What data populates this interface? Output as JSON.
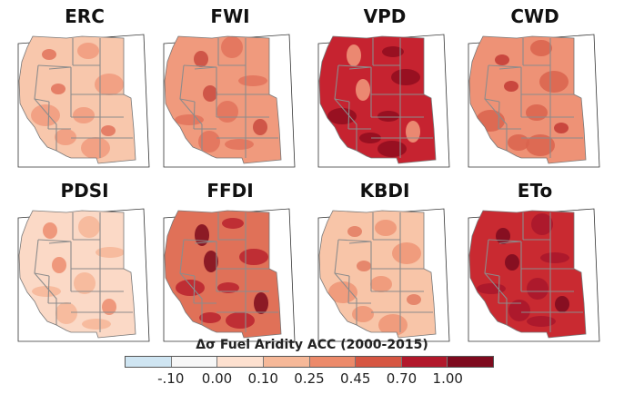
{
  "panels": [
    {
      "label": "ERC",
      "fill": "#f8c7ac",
      "patch": "#f19a7c",
      "dark": "#e2725b"
    },
    {
      "label": "FWI",
      "fill": "#f09a7d",
      "patch": "#e2725b",
      "dark": "#c94a3e"
    },
    {
      "label": "VPD",
      "fill": "#c62330",
      "patch": "#8f0d1f",
      "dark": "#f19a7c"
    },
    {
      "label": "CWD",
      "fill": "#ee9276",
      "patch": "#d9634e",
      "dark": "#c23a35"
    },
    {
      "label": "PDSI",
      "fill": "#fbd9c6",
      "patch": "#f6b596",
      "dark": "#ec8c6e"
    },
    {
      "label": "FFDI",
      "fill": "#e07158",
      "patch": "#b8222e",
      "dark": "#7d0a1c"
    },
    {
      "label": "KBDI",
      "fill": "#f8c5a8",
      "patch": "#ef9476",
      "dark": "#e37b62"
    },
    {
      "label": "ETo",
      "fill": "#c92a31",
      "patch": "#a8162b",
      "dark": "#7b0a1e"
    }
  ],
  "colorbar": {
    "title": "Δσ Fuel Aridity ACC (2000-2015)",
    "colors": [
      "#cfe5f2",
      "#f7f7f7",
      "#fde0cf",
      "#f6b898",
      "#ec8a6a",
      "#d65642",
      "#b2182b",
      "#7e0a1e"
    ],
    "ticks": [
      "-.10",
      "0.00",
      "0.10",
      "0.25",
      "0.45",
      "0.70",
      "1.00"
    ]
  }
}
